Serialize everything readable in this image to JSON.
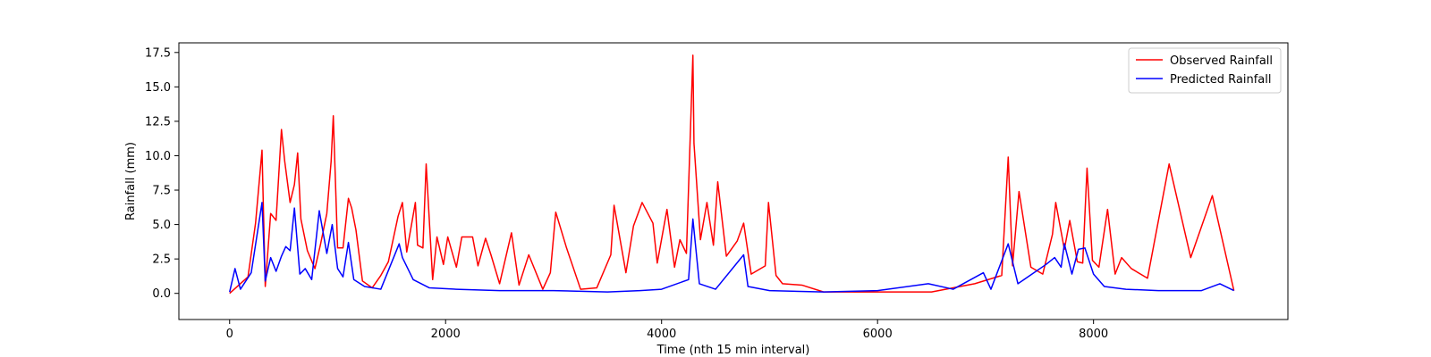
{
  "chart_data": {
    "type": "line",
    "title": "",
    "xlabel": "Time (nth 15 min interval)",
    "ylabel": "Rainfall (mm)",
    "xlim": [
      -470,
      9800
    ],
    "ylim": [
      -1.9,
      18.2
    ],
    "x_ticks": [
      0,
      2000,
      4000,
      6000,
      8000
    ],
    "y_ticks": [
      0.0,
      2.5,
      5.0,
      7.5,
      10.0,
      12.5,
      15.0,
      17.5
    ],
    "x_tick_labels": [
      "0",
      "2000",
      "4000",
      "6000",
      "8000"
    ],
    "y_tick_labels": [
      "0.0",
      "2.5",
      "5.0",
      "7.5",
      "10.0",
      "12.5",
      "15.0",
      "17.5"
    ],
    "grid": false,
    "legend_position": "top-right",
    "series": [
      {
        "name": "Observed Rainfall",
        "color": "#ff0000",
        "points": [
          [
            0,
            0
          ],
          [
            170,
            1.2
          ],
          [
            240,
            5.1
          ],
          [
            300,
            10.4
          ],
          [
            330,
            0.5
          ],
          [
            380,
            5.8
          ],
          [
            430,
            5.3
          ],
          [
            480,
            11.9
          ],
          [
            510,
            9.6
          ],
          [
            560,
            6.6
          ],
          [
            600,
            7.9
          ],
          [
            630,
            10.2
          ],
          [
            660,
            5.4
          ],
          [
            720,
            3.1
          ],
          [
            790,
            1.8
          ],
          [
            840,
            3.5
          ],
          [
            900,
            5.8
          ],
          [
            940,
            9.6
          ],
          [
            960,
            12.9
          ],
          [
            1000,
            3.3
          ],
          [
            1050,
            3.3
          ],
          [
            1100,
            6.9
          ],
          [
            1130,
            6.2
          ],
          [
            1170,
            4.6
          ],
          [
            1230,
            0.9
          ],
          [
            1320,
            0.4
          ],
          [
            1400,
            1.3
          ],
          [
            1470,
            2.3
          ],
          [
            1560,
            5.6
          ],
          [
            1600,
            6.6
          ],
          [
            1640,
            3.0
          ],
          [
            1720,
            6.6
          ],
          [
            1740,
            3.5
          ],
          [
            1790,
            3.3
          ],
          [
            1820,
            9.4
          ],
          [
            1880,
            1.0
          ],
          [
            1920,
            4.1
          ],
          [
            1980,
            2.1
          ],
          [
            2020,
            4.1
          ],
          [
            2100,
            1.9
          ],
          [
            2150,
            4.1
          ],
          [
            2250,
            4.1
          ],
          [
            2300,
            2.0
          ],
          [
            2370,
            4.0
          ],
          [
            2420,
            2.8
          ],
          [
            2500,
            0.7
          ],
          [
            2610,
            4.4
          ],
          [
            2680,
            0.6
          ],
          [
            2770,
            2.8
          ],
          [
            2900,
            0.3
          ],
          [
            2970,
            1.5
          ],
          [
            3020,
            5.9
          ],
          [
            3120,
            3.3
          ],
          [
            3250,
            0.3
          ],
          [
            3400,
            0.4
          ],
          [
            3530,
            2.8
          ],
          [
            3560,
            6.4
          ],
          [
            3670,
            1.5
          ],
          [
            3740,
            4.9
          ],
          [
            3820,
            6.6
          ],
          [
            3920,
            5.1
          ],
          [
            3960,
            2.2
          ],
          [
            4050,
            6.1
          ],
          [
            4120,
            1.9
          ],
          [
            4170,
            3.9
          ],
          [
            4230,
            2.9
          ],
          [
            4290,
            17.3
          ],
          [
            4300,
            10.9
          ],
          [
            4360,
            3.9
          ],
          [
            4420,
            6.6
          ],
          [
            4480,
            3.5
          ],
          [
            4520,
            8.1
          ],
          [
            4600,
            2.7
          ],
          [
            4700,
            3.8
          ],
          [
            4760,
            5.1
          ],
          [
            4830,
            1.4
          ],
          [
            4960,
            2.0
          ],
          [
            4990,
            6.6
          ],
          [
            5060,
            1.3
          ],
          [
            5120,
            0.7
          ],
          [
            5300,
            0.6
          ],
          [
            5500,
            0.1
          ],
          [
            6000,
            0.1
          ],
          [
            6500,
            0.1
          ],
          [
            6900,
            0.7
          ],
          [
            7150,
            1.3
          ],
          [
            7210,
            9.9
          ],
          [
            7250,
            2.0
          ],
          [
            7310,
            7.4
          ],
          [
            7420,
            1.9
          ],
          [
            7530,
            1.4
          ],
          [
            7620,
            4.3
          ],
          [
            7650,
            6.6
          ],
          [
            7730,
            3.2
          ],
          [
            7780,
            5.3
          ],
          [
            7850,
            2.3
          ],
          [
            7900,
            2.2
          ],
          [
            7940,
            9.1
          ],
          [
            7990,
            2.4
          ],
          [
            8050,
            1.9
          ],
          [
            8130,
            6.1
          ],
          [
            8200,
            1.4
          ],
          [
            8260,
            2.6
          ],
          [
            8350,
            1.8
          ],
          [
            8500,
            1.1
          ],
          [
            8700,
            9.4
          ],
          [
            8900,
            2.6
          ],
          [
            9100,
            7.1
          ],
          [
            9300,
            0.2
          ]
        ]
      },
      {
        "name": "Predicted Rainfall",
        "color": "#0000ff",
        "points": [
          [
            0,
            0.1
          ],
          [
            50,
            1.8
          ],
          [
            100,
            0.3
          ],
          [
            200,
            1.5
          ],
          [
            300,
            6.6
          ],
          [
            330,
            0.9
          ],
          [
            380,
            2.6
          ],
          [
            430,
            1.6
          ],
          [
            480,
            2.7
          ],
          [
            520,
            3.4
          ],
          [
            560,
            3.1
          ],
          [
            600,
            6.2
          ],
          [
            650,
            1.4
          ],
          [
            700,
            1.8
          ],
          [
            760,
            1.0
          ],
          [
            830,
            6.0
          ],
          [
            900,
            2.9
          ],
          [
            950,
            5.0
          ],
          [
            1000,
            1.8
          ],
          [
            1050,
            1.2
          ],
          [
            1100,
            3.7
          ],
          [
            1150,
            1.0
          ],
          [
            1250,
            0.5
          ],
          [
            1400,
            0.3
          ],
          [
            1570,
            3.6
          ],
          [
            1600,
            2.6
          ],
          [
            1700,
            1.0
          ],
          [
            1850,
            0.4
          ],
          [
            2100,
            0.3
          ],
          [
            2500,
            0.2
          ],
          [
            3000,
            0.2
          ],
          [
            3500,
            0.1
          ],
          [
            3800,
            0.2
          ],
          [
            4000,
            0.3
          ],
          [
            4250,
            1.0
          ],
          [
            4290,
            5.4
          ],
          [
            4350,
            0.7
          ],
          [
            4500,
            0.3
          ],
          [
            4760,
            2.8
          ],
          [
            4800,
            0.5
          ],
          [
            5000,
            0.2
          ],
          [
            5500,
            0.1
          ],
          [
            6000,
            0.2
          ],
          [
            6470,
            0.7
          ],
          [
            6700,
            0.3
          ],
          [
            6980,
            1.5
          ],
          [
            7050,
            0.3
          ],
          [
            7210,
            3.6
          ],
          [
            7300,
            0.7
          ],
          [
            7560,
            2.1
          ],
          [
            7640,
            2.6
          ],
          [
            7700,
            1.9
          ],
          [
            7730,
            3.6
          ],
          [
            7800,
            1.4
          ],
          [
            7860,
            3.2
          ],
          [
            7920,
            3.3
          ],
          [
            8000,
            1.4
          ],
          [
            8100,
            0.5
          ],
          [
            8300,
            0.3
          ],
          [
            8600,
            0.2
          ],
          [
            9000,
            0.2
          ],
          [
            9170,
            0.7
          ],
          [
            9300,
            0.2
          ]
        ]
      }
    ]
  }
}
